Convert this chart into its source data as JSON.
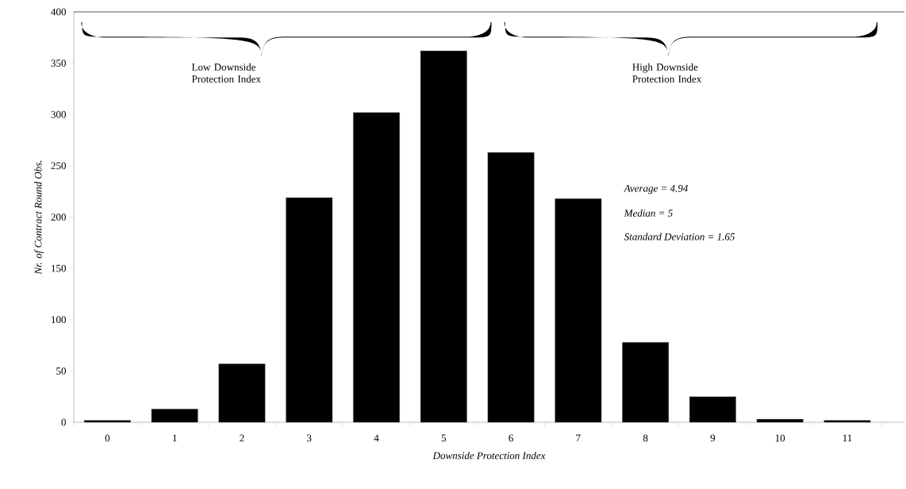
{
  "chart_data": {
    "type": "bar",
    "xlabel": "Downside Protection Index",
    "ylabel": "Nr. of Contract Round Obs.",
    "categories": [
      "0",
      "1",
      "2",
      "3",
      "4",
      "5",
      "6",
      "7",
      "8",
      "9",
      "10",
      "11"
    ],
    "values": [
      2,
      13,
      57,
      219,
      302,
      362,
      263,
      218,
      78,
      25,
      3,
      2
    ],
    "color": "#000000",
    "ylim": [
      0,
      400
    ],
    "yticks": [
      0,
      50,
      100,
      150,
      200,
      250,
      300,
      350,
      400
    ],
    "annotations": [
      "Low Downside Protection Index",
      "High Downside Protection Index",
      "Average =  4.94",
      "Median = 5",
      "Standard Deviation = 1.65"
    ]
  }
}
